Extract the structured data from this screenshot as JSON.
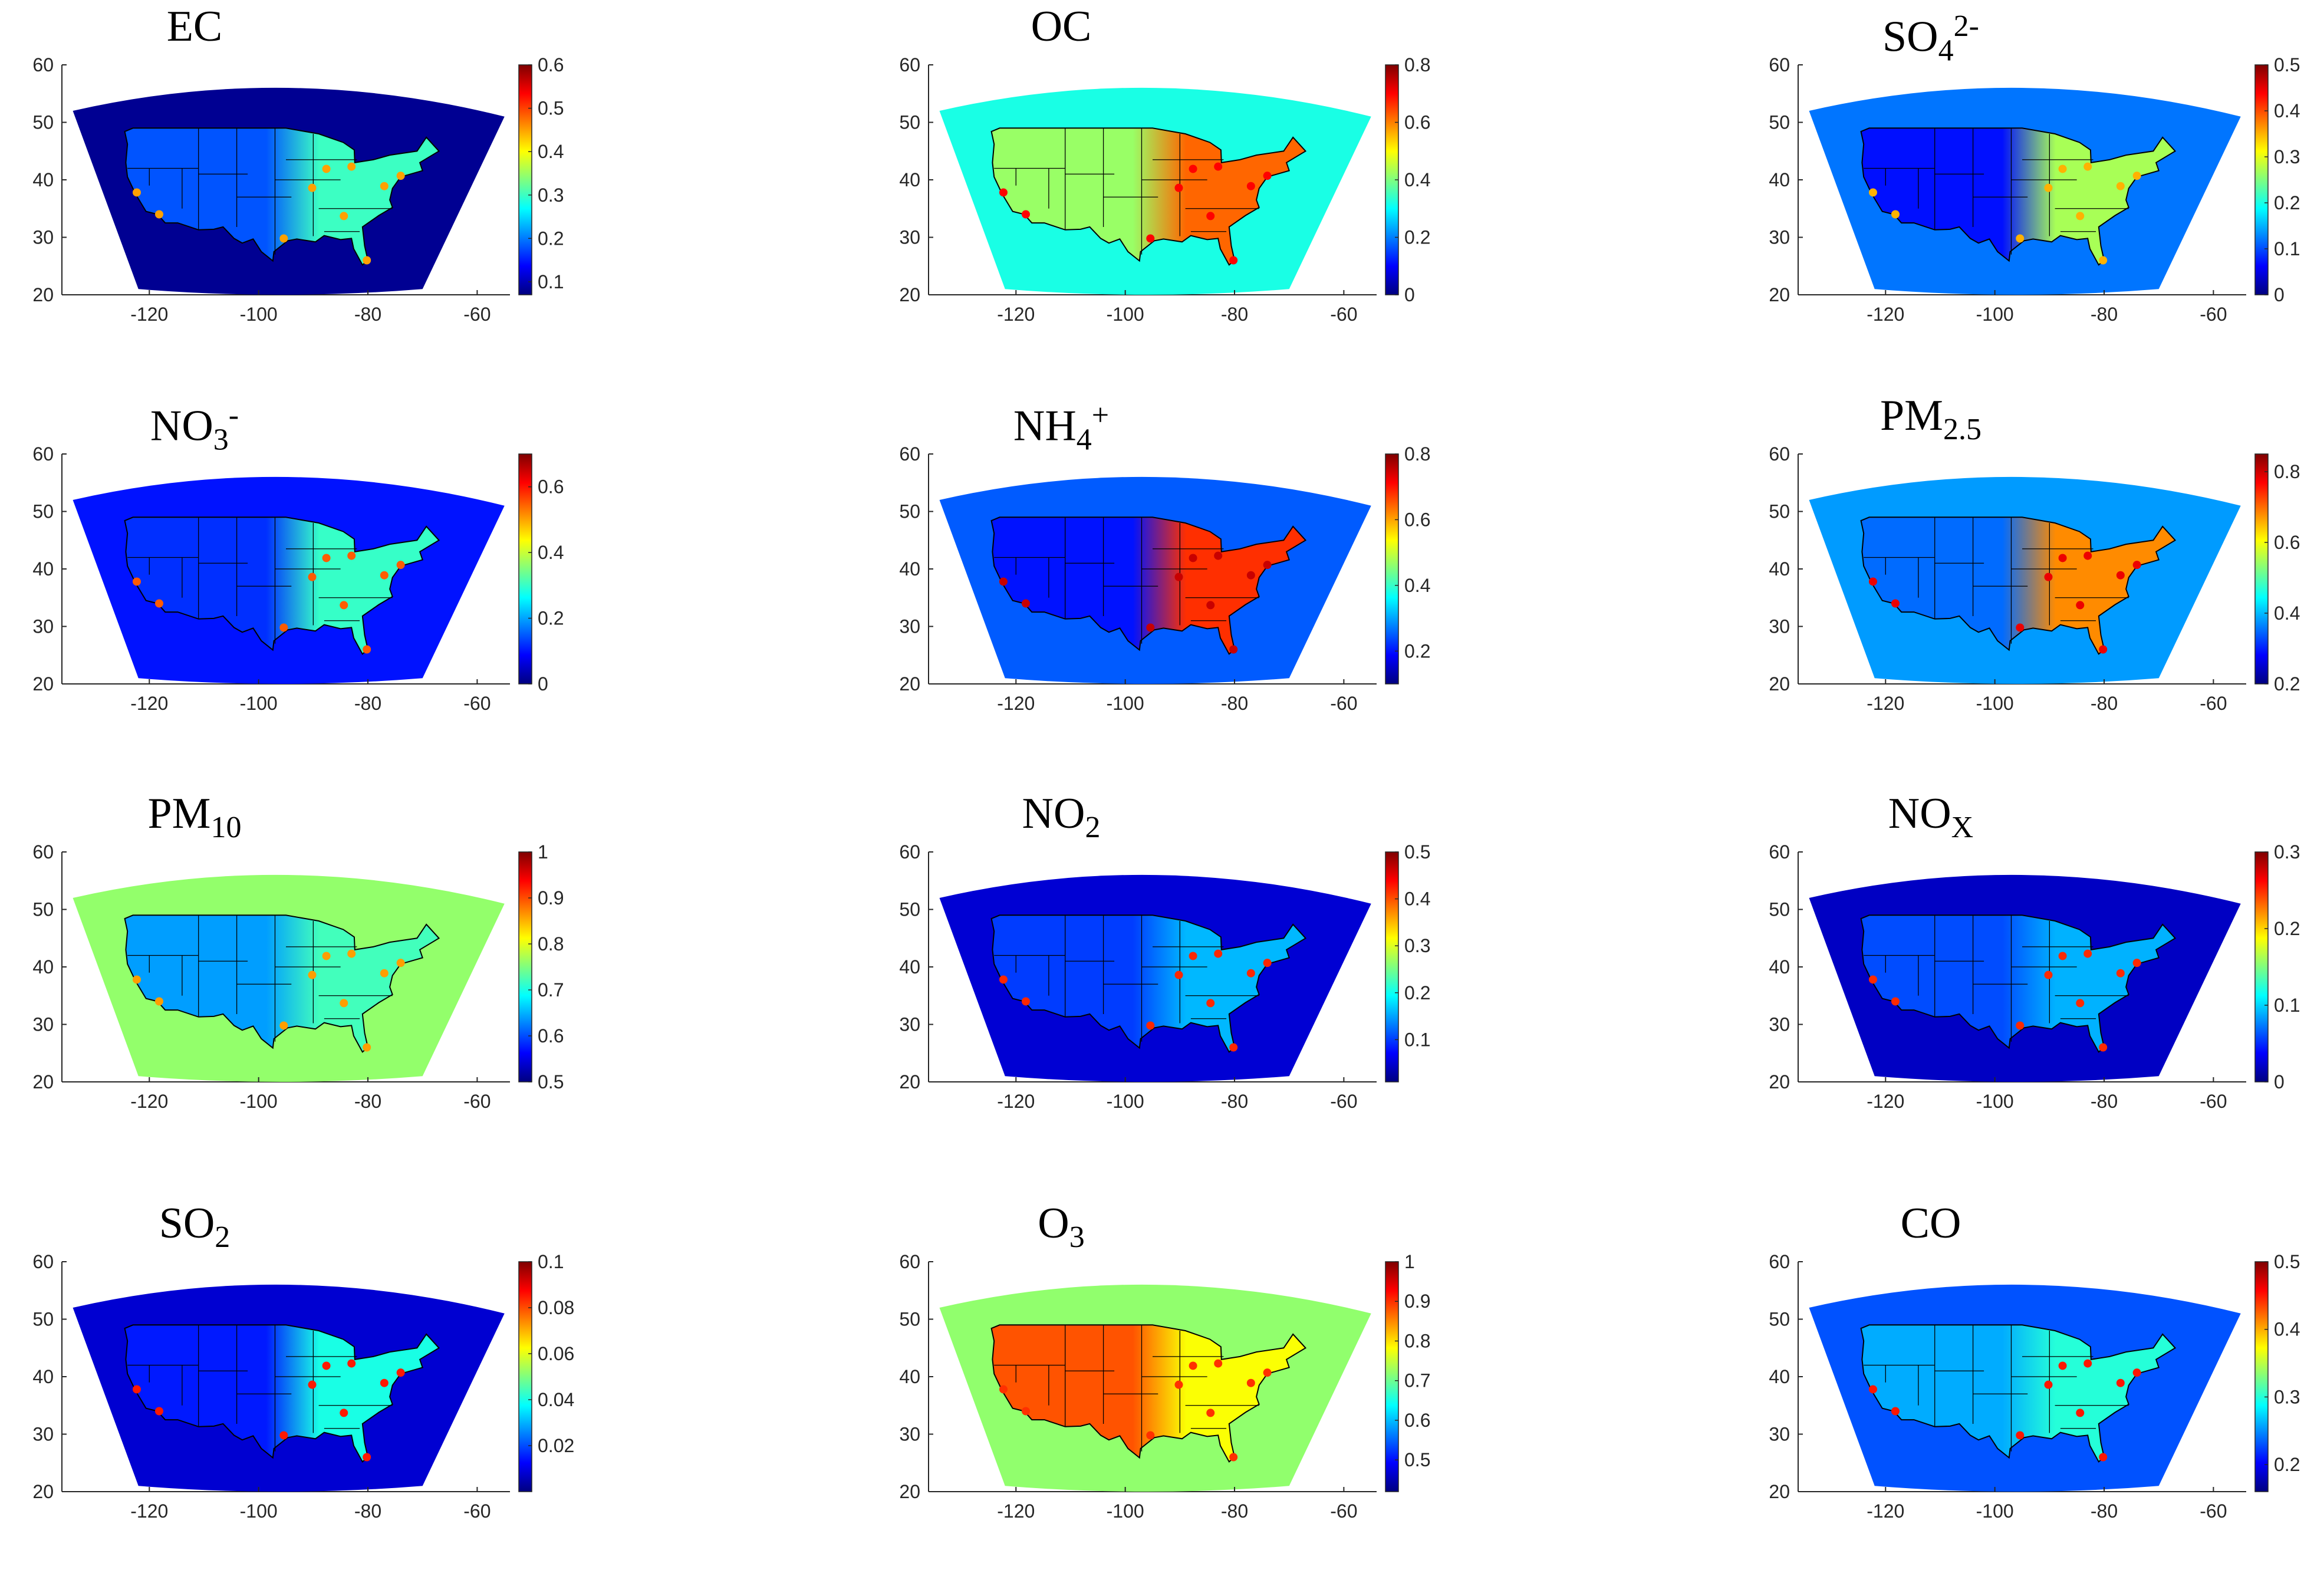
{
  "colors": {
    "jet": [
      "#00007f",
      "#0000ff",
      "#007fff",
      "#00ffff",
      "#7fff7f",
      "#ffff00",
      "#ff7f00",
      "#ff0000",
      "#7f0000"
    ],
    "axis": "#262626",
    "borders": "#000000"
  },
  "chart_data": [
    {
      "type": "heatmap",
      "title": "EC",
      "title_parts": [
        {
          "text": "EC",
          "kind": "normal"
        }
      ],
      "x_ticks": [
        -120,
        -100,
        -80,
        -60
      ],
      "y_ticks": [
        20,
        30,
        40,
        50,
        60
      ],
      "xlim": [
        -136,
        -54
      ],
      "ylim": [
        20,
        60
      ],
      "colorbar": {
        "min": 0.07,
        "max": 0.6,
        "ticks": [
          0.1,
          0.2,
          0.3,
          0.4,
          0.5,
          0.6
        ]
      },
      "levels": {
        "ocean": 0.08,
        "west": 0.18,
        "east": 0.3,
        "hotspot": 0.45
      }
    },
    {
      "type": "heatmap",
      "title": "OC",
      "title_parts": [
        {
          "text": "OC",
          "kind": "normal"
        }
      ],
      "x_ticks": [
        -120,
        -100,
        -80,
        -60
      ],
      "y_ticks": [
        20,
        30,
        40,
        50,
        60
      ],
      "xlim": [
        -136,
        -54
      ],
      "ylim": [
        20,
        60
      ],
      "colorbar": {
        "min": 0,
        "max": 0.8,
        "ticks": [
          0,
          0.2,
          0.4,
          0.6,
          0.8
        ]
      },
      "levels": {
        "ocean": 0.32,
        "west": 0.42,
        "east": 0.62,
        "hotspot": 0.7
      }
    },
    {
      "type": "heatmap",
      "title": "SO42-",
      "title_parts": [
        {
          "text": "SO",
          "kind": "normal"
        },
        {
          "text": "4",
          "kind": "sub"
        },
        {
          "text": "2-",
          "kind": "sup"
        }
      ],
      "x_ticks": [
        -120,
        -100,
        -80,
        -60
      ],
      "y_ticks": [
        20,
        30,
        40,
        50,
        60
      ],
      "xlim": [
        -136,
        -54
      ],
      "ylim": [
        20,
        60
      ],
      "colorbar": {
        "min": 0,
        "max": 0.5,
        "ticks": [
          0,
          0.1,
          0.2,
          0.3,
          0.4,
          0.5
        ]
      },
      "levels": {
        "ocean": 0.12,
        "west": 0.07,
        "east": 0.27,
        "hotspot": 0.35
      }
    },
    {
      "type": "heatmap",
      "title": "NO3-",
      "title_parts": [
        {
          "text": "NO",
          "kind": "normal"
        },
        {
          "text": "3",
          "kind": "sub"
        },
        {
          "text": "-",
          "kind": "sup"
        }
      ],
      "x_ticks": [
        -120,
        -100,
        -80,
        -60
      ],
      "y_ticks": [
        20,
        30,
        40,
        50,
        60
      ],
      "xlim": [
        -136,
        -54
      ],
      "ylim": [
        20,
        60
      ],
      "colorbar": {
        "min": 0,
        "max": 0.7,
        "ticks": [
          0,
          0.2,
          0.4,
          0.6
        ]
      },
      "levels": {
        "ocean": 0.1,
        "west": 0.12,
        "east": 0.3,
        "hotspot": 0.55
      }
    },
    {
      "type": "heatmap",
      "title": "NH4+",
      "title_parts": [
        {
          "text": "NH",
          "kind": "normal"
        },
        {
          "text": "4",
          "kind": "sub"
        },
        {
          "text": "+",
          "kind": "sup"
        }
      ],
      "x_ticks": [
        -120,
        -100,
        -80,
        -60
      ],
      "y_ticks": [
        20,
        30,
        40,
        50,
        60
      ],
      "xlim": [
        -136,
        -54
      ],
      "ylim": [
        20,
        60
      ],
      "colorbar": {
        "min": 0.1,
        "max": 0.8,
        "ticks": [
          0.2,
          0.4,
          0.6,
          0.8
        ]
      },
      "levels": {
        "ocean": 0.25,
        "west": 0.2,
        "east": 0.68,
        "hotspot": 0.75
      }
    },
    {
      "type": "heatmap",
      "title": "PM2.5",
      "title_parts": [
        {
          "text": "PM",
          "kind": "normal"
        },
        {
          "text": "2.5",
          "kind": "sub"
        }
      ],
      "x_ticks": [
        -120,
        -100,
        -80,
        -60
      ],
      "y_ticks": [
        20,
        30,
        40,
        50,
        60
      ],
      "xlim": [
        -136,
        -54
      ],
      "ylim": [
        20,
        60
      ],
      "colorbar": {
        "min": 0.2,
        "max": 0.85,
        "ticks": [
          0.2,
          0.4,
          0.6,
          0.8
        ]
      },
      "levels": {
        "ocean": 0.38,
        "west": 0.35,
        "east": 0.68,
        "hotspot": 0.78
      }
    },
    {
      "type": "heatmap",
      "title": "PM10",
      "title_parts": [
        {
          "text": "PM",
          "kind": "normal"
        },
        {
          "text": "10",
          "kind": "sub"
        }
      ],
      "x_ticks": [
        -120,
        -100,
        -80,
        -60
      ],
      "y_ticks": [
        20,
        30,
        40,
        50,
        60
      ],
      "xlim": [
        -136,
        -54
      ],
      "ylim": [
        20,
        60
      ],
      "colorbar": {
        "min": 0.5,
        "max": 1.0,
        "ticks": [
          0.5,
          0.6,
          0.7,
          0.8,
          0.9,
          1
        ]
      },
      "levels": {
        "ocean": 0.76,
        "west": 0.64,
        "east": 0.72,
        "hotspot": 0.86
      }
    },
    {
      "type": "heatmap",
      "title": "NO2",
      "title_parts": [
        {
          "text": "NO",
          "kind": "normal"
        },
        {
          "text": "2",
          "kind": "sub"
        }
      ],
      "x_ticks": [
        -120,
        -100,
        -80,
        -60
      ],
      "y_ticks": [
        20,
        30,
        40,
        50,
        60
      ],
      "xlim": [
        -136,
        -54
      ],
      "ylim": [
        20,
        60
      ],
      "colorbar": {
        "min": 0.01,
        "max": 0.5,
        "ticks": [
          0.1,
          0.2,
          0.3,
          0.4,
          0.5
        ]
      },
      "levels": {
        "ocean": 0.05,
        "west": 0.1,
        "east": 0.16,
        "hotspot": 0.42
      }
    },
    {
      "type": "heatmap",
      "title": "NOX",
      "title_parts": [
        {
          "text": "NO",
          "kind": "normal"
        },
        {
          "text": "X",
          "kind": "sub"
        }
      ],
      "x_ticks": [
        -120,
        -100,
        -80,
        -60
      ],
      "y_ticks": [
        20,
        30,
        40,
        50,
        60
      ],
      "xlim": [
        -136,
        -54
      ],
      "ylim": [
        20,
        60
      ],
      "colorbar": {
        "min": 0,
        "max": 0.3,
        "ticks": [
          0,
          0.1,
          0.2,
          0.3
        ]
      },
      "levels": {
        "ocean": 0.02,
        "west": 0.06,
        "east": 0.09,
        "hotspot": 0.25
      }
    },
    {
      "type": "heatmap",
      "title": "SO2",
      "title_parts": [
        {
          "text": "SO",
          "kind": "normal"
        },
        {
          "text": "2",
          "kind": "sub"
        }
      ],
      "x_ticks": [
        -120,
        -100,
        -80,
        -60
      ],
      "y_ticks": [
        20,
        30,
        40,
        50,
        60
      ],
      "xlim": [
        -136,
        -54
      ],
      "ylim": [
        20,
        60
      ],
      "colorbar": {
        "min": 0,
        "max": 0.1,
        "ticks": [
          0.02,
          0.04,
          0.06,
          0.08,
          0.1
        ]
      },
      "levels": {
        "ocean": 0.008,
        "west": 0.015,
        "east": 0.04,
        "hotspot": 0.085
      }
    },
    {
      "type": "heatmap",
      "title": "O3",
      "title_parts": [
        {
          "text": "O",
          "kind": "normal"
        },
        {
          "text": "3",
          "kind": "sub"
        }
      ],
      "x_ticks": [
        -120,
        -100,
        -80,
        -60
      ],
      "y_ticks": [
        20,
        30,
        40,
        50,
        60
      ],
      "xlim": [
        -136,
        -54
      ],
      "ylim": [
        20,
        60
      ],
      "colorbar": {
        "min": 0.42,
        "max": 1.0,
        "ticks": [
          0.5,
          0.6,
          0.7,
          0.8,
          0.9,
          1
        ]
      },
      "levels": {
        "ocean": 0.72,
        "west": 0.88,
        "east": 0.78,
        "hotspot": 0.9
      }
    },
    {
      "type": "heatmap",
      "title": "CO",
      "title_parts": [
        {
          "text": "CO",
          "kind": "normal"
        }
      ],
      "x_ticks": [
        -120,
        -100,
        -80,
        -60
      ],
      "y_ticks": [
        20,
        30,
        40,
        50,
        60
      ],
      "xlim": [
        -136,
        -54
      ],
      "ylim": [
        20,
        60
      ],
      "colorbar": {
        "min": 0.16,
        "max": 0.5,
        "ticks": [
          0.2,
          0.3,
          0.4,
          0.5
        ]
      },
      "levels": {
        "ocean": 0.23,
        "west": 0.26,
        "east": 0.3,
        "hotspot": 0.45
      }
    }
  ]
}
